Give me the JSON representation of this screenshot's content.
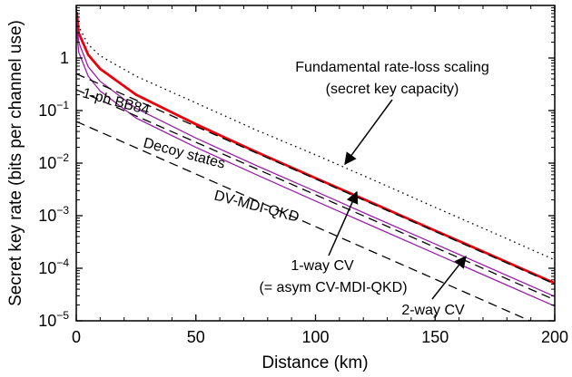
{
  "chart_data": {
    "type": "line",
    "xlabel": "Distance (km)",
    "ylabel": "Secret key rate (bits per channel use)",
    "xlim": [
      0,
      200
    ],
    "ylim": [
      1e-05,
      10
    ],
    "yscale": "log",
    "x_ticks": [
      0,
      50,
      100,
      150,
      200
    ],
    "x_tick_labels": [
      "0",
      "50",
      "100",
      "150",
      "200"
    ],
    "y_ticks": [
      {
        "value": 1e-05,
        "base": "10",
        "exp": "−5"
      },
      {
        "value": 0.0001,
        "base": "10",
        "exp": "−4"
      },
      {
        "value": 0.001,
        "base": "10",
        "exp": "−3"
      },
      {
        "value": 0.01,
        "base": "10",
        "exp": "−2"
      },
      {
        "value": 0.1,
        "base": "10",
        "exp": "−1"
      },
      {
        "value": 1,
        "base": "1",
        "exp": ""
      }
    ],
    "grid": false,
    "series": [
      {
        "name": "Fundamental rate-loss scaling (secret key capacity)",
        "color": "#000000",
        "style": "dotted",
        "width": 1.3,
        "x": [
          0.2,
          1,
          5,
          10,
          25,
          50,
          75,
          100,
          125,
          150,
          175,
          200
        ],
        "y": [
          8.5,
          4.0,
          1.8,
          1.1,
          0.45,
          0.14,
          0.043,
          0.0144,
          0.0046,
          0.00144,
          0.00046,
          0.000144
        ]
      },
      {
        "name": "2-way CV",
        "color": "#e8000b",
        "style": "solid",
        "width": 2.8,
        "x": [
          0.2,
          1,
          5,
          10,
          25,
          50,
          75,
          100,
          125,
          150,
          175,
          200
        ],
        "y": [
          7.5,
          3.0,
          1.15,
          0.62,
          0.2,
          0.055,
          0.0165,
          0.0052,
          0.00165,
          0.00052,
          0.000165,
          5.2e-05
        ]
      },
      {
        "name": "1-way CV (= asym CV-MDI-QKD)",
        "color": "#9a1fa8",
        "style": "solid",
        "width": 1.3,
        "x": [
          0.2,
          1,
          5,
          10,
          25,
          50,
          75,
          100,
          125,
          150,
          175,
          200
        ],
        "y": [
          5.0,
          2.0,
          0.68,
          0.36,
          0.11,
          0.03,
          0.0091,
          0.0029,
          0.00091,
          0.00029,
          9.2e-05,
          2.9e-05
        ]
      },
      {
        "name": "1-way CV (= asym CV-MDI-QKD)",
        "color": "#9a1fa8",
        "style": "solid",
        "width": 1.3,
        "x": [
          0.2,
          1,
          5,
          10,
          25,
          50,
          75,
          100,
          125,
          150,
          175,
          200
        ],
        "y": [
          3.5,
          1.3,
          0.45,
          0.235,
          0.072,
          0.02,
          0.0061,
          0.0019,
          0.0006,
          0.00019,
          6e-05,
          1.9e-05
        ]
      },
      {
        "name": "1-ph BB84",
        "color": "#000000",
        "style": "dashed",
        "width": 1.3,
        "x": [
          0,
          200
        ],
        "y": [
          0.5,
          5e-05
        ]
      },
      {
        "name": "Decoy states",
        "color": "#000000",
        "style": "dashed",
        "width": 1.3,
        "x": [
          0,
          200
        ],
        "y": [
          0.25,
          2.5e-05
        ]
      },
      {
        "name": "DV-MDI-QKD",
        "color": "#000000",
        "style": "dashed",
        "width": 1.3,
        "x": [
          0,
          200
        ],
        "y": [
          0.062,
          6.2e-06
        ]
      }
    ],
    "annotations": [
      {
        "id": "fundamental",
        "lines": [
          "Fundamental rate-loss scaling",
          "(secret key capacity)"
        ],
        "arrow_to": {
          "x": 112,
          "y": 0.0075
        }
      },
      {
        "id": "one-way",
        "lines": [
          "1-way CV",
          "(= asym CV-MDI-QKD)"
        ],
        "arrow_to": {
          "x": 118,
          "y": 0.0028
        }
      },
      {
        "id": "two-way",
        "lines": [
          "2-way CV"
        ],
        "arrow_to": {
          "x": 162,
          "y": 0.00027
        }
      },
      {
        "id": "bb84",
        "lines": [
          "1-ph BB84"
        ]
      },
      {
        "id": "decoy",
        "lines": [
          "Decoy states"
        ]
      },
      {
        "id": "dvmdi",
        "lines": [
          "DV-MDI-QKD"
        ]
      }
    ]
  }
}
